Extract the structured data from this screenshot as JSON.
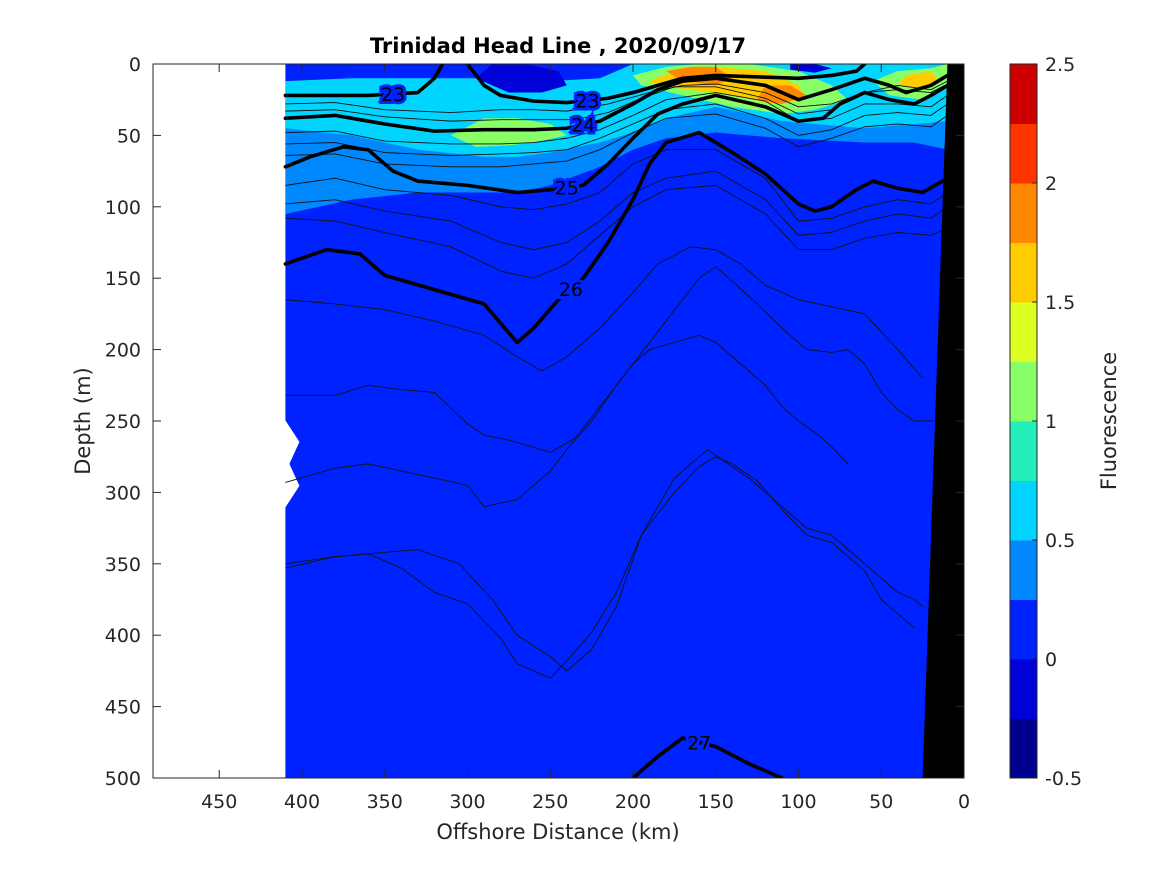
{
  "chart_data": {
    "type": "heatmap",
    "title": "Trinidad Head Line , 2020/09/17",
    "xlabel": "Offshore Distance (km)",
    "ylabel": "Depth (m)",
    "colorbar_label": "Fluorescence",
    "xlim": [
      490,
      0
    ],
    "ylim": [
      0,
      500
    ],
    "x_ticks": [
      450,
      400,
      350,
      300,
      250,
      200,
      150,
      100,
      50,
      0
    ],
    "y_ticks": [
      0,
      50,
      100,
      150,
      200,
      250,
      300,
      350,
      400,
      450,
      500
    ],
    "colorbar": {
      "ticks": [
        "2.5",
        "2",
        "1.5",
        "1",
        "0.5",
        "0",
        "-0.5"
      ],
      "levels": [
        -0.5,
        -0.25,
        0,
        0.25,
        0.5,
        0.75,
        1,
        1.25,
        1.5,
        1.75,
        2,
        2.25,
        2.5
      ],
      "colors": [
        "#00008f",
        "#0000d8",
        "#0022ff",
        "#0088ff",
        "#00d4ff",
        "#22eebb",
        "#88ff66",
        "#ddff22",
        "#ffcc00",
        "#ff8800",
        "#ff3300",
        "#cc0000"
      ]
    },
    "data_extent_x": [
      410,
      0
    ],
    "background_fluorescence": 0.1,
    "fluorescence_patches": [
      {
        "x": [
          410,
          370,
          330,
          290,
          270,
          250,
          220,
          200,
          180,
          150,
          110,
          60,
          30,
          10,
          10,
          30,
          60,
          110,
          150,
          180,
          200,
          220,
          250,
          270,
          290,
          330,
          370,
          410
        ],
        "depth": [
          20,
          20,
          20,
          20,
          15,
          15,
          15,
          5,
          0,
          0,
          0,
          0,
          0,
          0,
          60,
          55,
          55,
          52,
          48,
          52,
          60,
          72,
          85,
          90,
          90,
          90,
          95,
          105
        ],
        "value": 0.4
      },
      {
        "x": [
          410,
          370,
          330,
          290,
          270,
          250,
          220,
          200,
          180,
          150,
          110,
          60,
          30,
          10,
          10,
          30,
          60,
          110,
          150,
          180,
          200,
          220,
          250,
          270,
          290,
          330,
          370,
          410
        ],
        "depth": [
          12,
          10,
          10,
          10,
          10,
          12,
          10,
          0,
          0,
          0,
          0,
          0,
          0,
          0,
          40,
          42,
          45,
          40,
          30,
          38,
          48,
          55,
          62,
          65,
          65,
          60,
          50,
          45
        ],
        "value": 0.65
      },
      {
        "x": [
          290,
          270,
          250,
          240,
          260,
          275,
          295,
          310
        ],
        "depth": [
          38,
          38,
          42,
          50,
          55,
          57,
          58,
          50
        ],
        "value": 1.0
      },
      {
        "x": [
          200,
          180,
          160,
          130,
          100,
          80,
          70,
          90,
          110,
          140,
          170,
          195
        ],
        "depth": [
          8,
          2,
          0,
          0,
          5,
          15,
          25,
          32,
          35,
          30,
          22,
          15
        ],
        "value": 1.2
      },
      {
        "x": [
          40,
          20,
          10,
          10,
          25,
          45,
          55
        ],
        "depth": [
          5,
          3,
          0,
          15,
          25,
          22,
          12
        ],
        "value": 1.2
      },
      {
        "x": [
          190,
          170,
          150,
          120,
          100,
          95,
          115,
          140,
          165,
          185
        ],
        "depth": [
          12,
          3,
          2,
          5,
          15,
          25,
          28,
          22,
          18,
          15
        ],
        "value": 1.5
      },
      {
        "x": [
          180,
          165,
          150,
          140,
          150,
          170
        ],
        "depth": [
          5,
          2,
          2,
          10,
          15,
          12
        ],
        "value": 1.75
      },
      {
        "x": [
          35,
          20,
          15,
          25,
          40
        ],
        "depth": [
          8,
          5,
          12,
          18,
          15
        ],
        "value": 1.6
      },
      {
        "x": [
          120,
          105,
          95,
          110,
          125
        ],
        "depth": [
          15,
          15,
          22,
          28,
          25
        ],
        "value": 1.75
      },
      {
        "x": [
          285,
          265,
          245,
          240,
          255,
          275,
          295
        ],
        "depth": [
          0,
          0,
          5,
          15,
          20,
          20,
          10
        ],
        "value": -0.1
      },
      {
        "x": [
          105,
          90,
          80,
          90,
          105
        ],
        "depth": [
          0,
          0,
          3,
          6,
          4
        ],
        "value": -0.1
      }
    ],
    "isopycnals": [
      {
        "label": "23",
        "bold": true,
        "x": [
          410,
          360,
          330,
          320,
          315
        ],
        "depth": [
          22,
          22,
          20,
          10,
          0
        ]
      },
      {
        "label": "23",
        "bold": true,
        "x": [
          300,
          290,
          280,
          260,
          240,
          215,
          200,
          170,
          150,
          100,
          80,
          65,
          60
        ],
        "depth": [
          0,
          15,
          22,
          26,
          27,
          24,
          20,
          10,
          8,
          10,
          8,
          5,
          0
        ]
      },
      {
        "label": "24",
        "bold": true,
        "x": [
          410,
          380,
          350,
          320,
          290,
          260,
          240,
          220,
          200,
          185,
          170,
          150,
          120,
          100,
          80,
          60,
          45,
          35,
          20,
          10
        ],
        "depth": [
          38,
          36,
          42,
          47,
          46,
          46,
          45,
          40,
          28,
          18,
          12,
          10,
          15,
          25,
          18,
          10,
          15,
          20,
          15,
          8
        ]
      },
      {
        "label": "25",
        "bold": true,
        "x": [
          410,
          395,
          375,
          360,
          345,
          330,
          300,
          270,
          250,
          230,
          215,
          200,
          185,
          170,
          150,
          120,
          100,
          85,
          75,
          60,
          45,
          30,
          20,
          10
        ],
        "depth": [
          72,
          65,
          58,
          60,
          75,
          82,
          85,
          90,
          88,
          85,
          70,
          52,
          35,
          28,
          22,
          30,
          40,
          38,
          28,
          20,
          25,
          28,
          22,
          15
        ]
      },
      {
        "label": "26",
        "bold": true,
        "x": [
          410,
          385,
          365,
          350,
          320,
          290,
          270,
          260,
          245,
          230,
          215,
          200,
          190,
          180,
          160,
          140,
          120,
          100,
          90,
          80,
          65,
          55,
          40,
          25,
          10
        ],
        "depth": [
          140,
          130,
          133,
          148,
          158,
          168,
          195,
          185,
          165,
          150,
          125,
          95,
          70,
          55,
          48,
          62,
          77,
          98,
          103,
          100,
          88,
          82,
          87,
          90,
          80
        ]
      },
      {
        "label": "27",
        "bold": true,
        "x": [
          200,
          185,
          170,
          150,
          130,
          110
        ],
        "depth": [
          500,
          485,
          472,
          478,
          490,
          500
        ]
      }
    ],
    "thin_contours": [
      {
        "x": [
          410,
          380,
          350,
          310,
          280,
          260,
          240,
          215,
          190,
          170,
          150,
          120,
          100,
          80,
          60,
          40,
          20,
          10
        ],
        "depth": [
          28,
          27,
          32,
          34,
          32,
          32,
          33,
          28,
          20,
          15,
          14,
          20,
          30,
          28,
          20,
          15,
          18,
          12
        ]
      },
      {
        "x": [
          410,
          380,
          350,
          310,
          280,
          260,
          235,
          215,
          195,
          175,
          150,
          120,
          100,
          80,
          60,
          40,
          20,
          10
        ],
        "depth": [
          33,
          32,
          37,
          40,
          39,
          39,
          39,
          34,
          24,
          16,
          16,
          24,
          35,
          32,
          20,
          18,
          20,
          14
        ]
      },
      {
        "x": [
          410,
          380,
          350,
          310,
          280,
          260,
          240,
          220,
          200,
          180,
          150,
          120,
          100,
          80,
          60,
          40,
          20,
          10
        ],
        "depth": [
          48,
          47,
          54,
          56,
          56,
          55,
          52,
          46,
          36,
          25,
          20,
          26,
          40,
          38,
          28,
          28,
          30,
          22
        ]
      },
      {
        "x": [
          410,
          380,
          350,
          310,
          280,
          260,
          240,
          220,
          200,
          180,
          150,
          120,
          100,
          80,
          60,
          40,
          20,
          10
        ],
        "depth": [
          56,
          55,
          62,
          64,
          63,
          62,
          60,
          52,
          42,
          32,
          28,
          38,
          50,
          46,
          36,
          34,
          36,
          28
        ]
      },
      {
        "x": [
          410,
          380,
          350,
          310,
          280,
          260,
          240,
          220,
          200,
          180,
          150,
          120,
          100,
          80,
          60,
          40,
          20,
          10
        ],
        "depth": [
          64,
          63,
          70,
          72,
          72,
          70,
          68,
          60,
          48,
          38,
          35,
          45,
          58,
          52,
          44,
          42,
          44,
          36
        ]
      },
      {
        "x": [
          410,
          380,
          350,
          310,
          280,
          260,
          240,
          220,
          200,
          180,
          150,
          120,
          100,
          80,
          60,
          40,
          20,
          10
        ],
        "depth": [
          85,
          80,
          88,
          92,
          100,
          102,
          98,
          90,
          70,
          60,
          60,
          80,
          110,
          108,
          100,
          95,
          98,
          90
        ]
      },
      {
        "x": [
          410,
          380,
          350,
          310,
          280,
          260,
          240,
          220,
          200,
          180,
          150,
          120,
          100,
          80,
          60,
          40,
          20,
          10
        ],
        "depth": [
          98,
          95,
          103,
          110,
          125,
          130,
          125,
          110,
          90,
          80,
          75,
          95,
          120,
          118,
          110,
          105,
          108,
          100
        ]
      },
      {
        "x": [
          410,
          380,
          350,
          310,
          280,
          260,
          240,
          220,
          200,
          180,
          150,
          120,
          100,
          80,
          60,
          40,
          20,
          10
        ],
        "depth": [
          108,
          110,
          118,
          128,
          145,
          150,
          140,
          120,
          100,
          88,
          85,
          105,
          130,
          130,
          122,
          118,
          120,
          115
        ]
      },
      {
        "x": [
          410,
          380,
          350,
          320,
          290,
          270,
          255,
          240,
          220,
          200,
          185,
          165,
          150,
          135,
          120,
          100,
          80,
          60,
          40,
          25
        ],
        "depth": [
          165,
          168,
          172,
          180,
          190,
          205,
          215,
          205,
          185,
          160,
          140,
          128,
          130,
          140,
          155,
          165,
          170,
          175,
          200,
          220
        ]
      },
      {
        "x": [
          410,
          380,
          360,
          340,
          320,
          300,
          290,
          280,
          270,
          250,
          235,
          220,
          200,
          180,
          160,
          150,
          140,
          125,
          110,
          95,
          80,
          70,
          60,
          50,
          40,
          30,
          18
        ],
        "depth": [
          232,
          232,
          225,
          228,
          230,
          252,
          260,
          262,
          265,
          272,
          262,
          240,
          210,
          180,
          150,
          142,
          152,
          168,
          185,
          200,
          202,
          200,
          210,
          230,
          242,
          250,
          250
        ]
      },
      {
        "x": [
          410,
          380,
          360,
          330,
          305,
          285,
          270,
          250,
          240,
          225,
          210,
          195,
          175,
          155,
          145,
          130,
          115,
          95,
          80,
          70,
          60,
          50,
          40,
          30,
          25
        ],
        "depth": [
          353,
          345,
          343,
          340,
          350,
          375,
          400,
          415,
          425,
          410,
          380,
          330,
          290,
          270,
          278,
          290,
          305,
          325,
          330,
          340,
          350,
          360,
          370,
          375,
          380
        ]
      },
      {
        "x": [
          410,
          380,
          360,
          340,
          320,
          300,
          290,
          280,
          270,
          250,
          240,
          225,
          210,
          195,
          175,
          160,
          150,
          140,
          125,
          110,
          95,
          80,
          70,
          60,
          50,
          40,
          30
        ],
        "depth": [
          350,
          345,
          343,
          353,
          370,
          378,
          390,
          402,
          420,
          430,
          418,
          398,
          370,
          330,
          300,
          282,
          275,
          280,
          292,
          312,
          330,
          335,
          345,
          355,
          375,
          385,
          395
        ]
      },
      {
        "x": [
          410,
          380,
          360,
          340,
          320,
          300,
          290,
          270,
          250,
          240,
          225,
          210,
          200,
          190,
          175,
          160,
          150,
          140,
          130,
          120,
          110,
          100,
          90,
          80,
          70
        ],
        "depth": [
          293,
          283,
          280,
          285,
          290,
          295,
          310,
          305,
          285,
          270,
          250,
          225,
          210,
          200,
          195,
          190,
          195,
          205,
          215,
          225,
          240,
          250,
          258,
          268,
          280
        ]
      }
    ],
    "seafloor": {
      "x": [
        10,
        25,
        0
      ],
      "depth": [
        0,
        500,
        500
      ],
      "color": "#000000"
    }
  }
}
